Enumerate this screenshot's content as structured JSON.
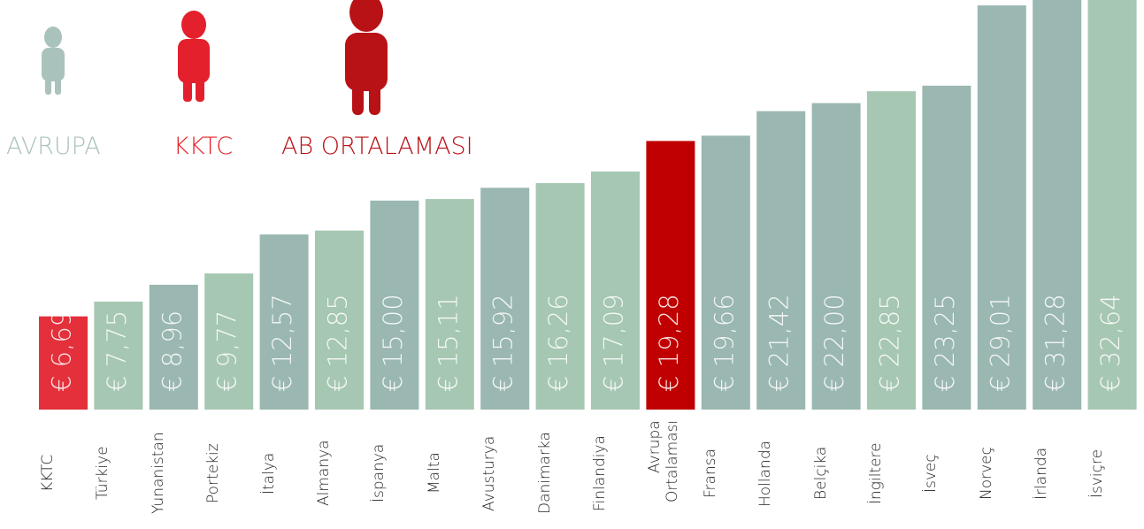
{
  "chart_data": {
    "type": "bar",
    "legend": [
      {
        "label": "AVRUPA",
        "color": "#a9c2bc"
      },
      {
        "label": "KKTC",
        "color": "#e3202b"
      },
      {
        "label": "AB ORTALAMASI",
        "color": "#b81216"
      }
    ],
    "categories": [
      "KKTC",
      "Türkiye",
      "Yunanistan",
      "Portekiz",
      "İtalya",
      "Almanya",
      "İspanya",
      "Malta",
      "Avusturya",
      "Danimarka",
      "Finlandiya",
      "Avrupa Ortalaması",
      "Fransa",
      "Hollanda",
      "Belçika",
      "İngiltere",
      "İsveç",
      "Norveç",
      "İrlanda",
      "İsviçre"
    ],
    "values": [
      6.69,
      7.75,
      8.96,
      9.77,
      12.57,
      12.85,
      15.0,
      15.11,
      15.92,
      16.26,
      17.09,
      19.28,
      19.66,
      21.42,
      22.0,
      22.85,
      23.25,
      29.01,
      31.28,
      32.64
    ],
    "value_labels": [
      "€ 6,69",
      "€ 7,75",
      "€ 8,96",
      "€ 9,77",
      "€ 12,57",
      "€ 12,85",
      "€ 15,00",
      "€ 15,11",
      "€ 15,92",
      "€ 16,26",
      "€ 17,09",
      "€ 19,28",
      "€ 19,66",
      "€ 21,42",
      "€ 22,00",
      "€ 22,85",
      "€ 23,25",
      "€ 29,01",
      "€ 31,28",
      "€ 32,64"
    ],
    "colors": [
      "#e3303b",
      "#a6c7b2",
      "#9ab7b1",
      "#a6c7b2",
      "#9ab7b1",
      "#a6c7b2",
      "#9ab7b1",
      "#a6c7b2",
      "#9ab7b1",
      "#a6c7b2",
      "#a6c7b2",
      "#c00000",
      "#9ab7b1",
      "#9ab7b1",
      "#9ab7b1",
      "#a6c7b2",
      "#9ab7b1",
      "#9ab7b1",
      "#9ab7b1",
      "#a6c7b2"
    ],
    "ylim": [
      0,
      29.4
    ]
  }
}
